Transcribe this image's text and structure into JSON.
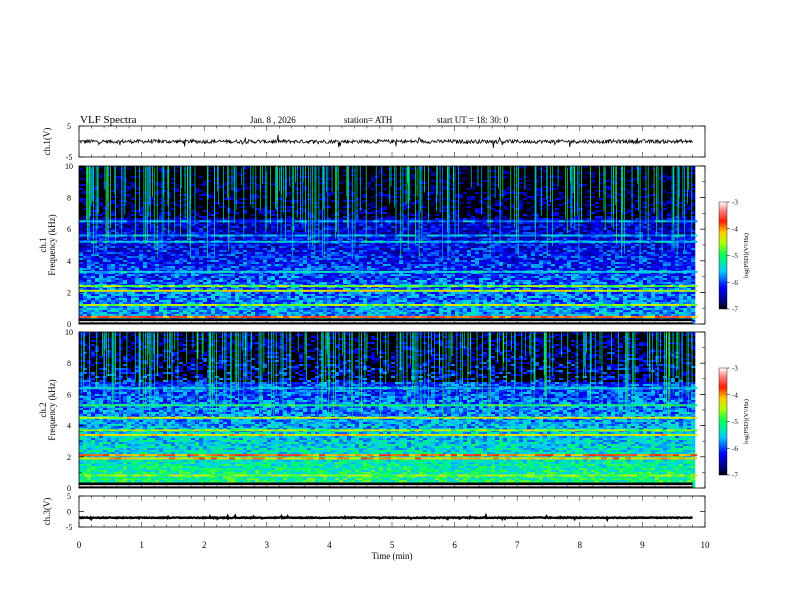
{
  "header": {
    "title": "VLF  Spectra",
    "date": "Jan. 8  , 2026",
    "station": "station= ATH",
    "start": "start  UT  =   18: 30: 0"
  },
  "chart_data": [
    {
      "id": "ch1_waveform",
      "type": "line",
      "ylabel": "ch.1(V)",
      "ylim": [
        -5,
        5
      ],
      "yticks_labeled": [
        5,
        -5
      ],
      "xlim": [
        0,
        10
      ],
      "data_extent_min": [
        0,
        9.8
      ],
      "baseline_v": 0,
      "noise_amplitude_v": 1.2,
      "color": "#000000"
    },
    {
      "id": "ch1_spectrogram",
      "type": "heatmap",
      "ylabel": "ch.1\nFrequency  (kHz)",
      "ylim": [
        0,
        10
      ],
      "yticks": [
        0,
        2,
        4,
        6,
        8,
        10
      ],
      "xlim": [
        0,
        10
      ],
      "data_extent_min": [
        0,
        9.8
      ],
      "bands_khz": [
        {
          "f": 0.45,
          "level": -3.8
        },
        {
          "f": 1.2,
          "level": -4.6
        },
        {
          "f": 2.1,
          "level": -4.4
        },
        {
          "f": 2.4,
          "level": -4.7
        },
        {
          "f": 3.3,
          "level": -5.5
        },
        {
          "f": 5.2,
          "level": -5.6
        },
        {
          "f": 5.6,
          "level": -5.7
        },
        {
          "f": 6.5,
          "level": -5.8
        }
      ],
      "colorbar": {
        "label": "log(PSD)(V²/Hz)",
        "ticks": [
          -3,
          -4,
          -5,
          -6,
          -7
        ],
        "range": [
          -7,
          -3
        ]
      }
    },
    {
      "id": "ch2_spectrogram",
      "type": "heatmap",
      "ylabel": "ch.2\nFrequency  (kHz)",
      "ylim": [
        0,
        10
      ],
      "yticks": [
        0,
        2,
        4,
        6,
        8,
        10
      ],
      "xlim": [
        0,
        10
      ],
      "data_extent_min": [
        0,
        9.8
      ],
      "bands_khz": [
        {
          "f": 0.8,
          "level": -4.6
        },
        {
          "f": 1.9,
          "level": -4.1
        },
        {
          "f": 2.1,
          "level": -3.9
        },
        {
          "f": 3.4,
          "level": -4.3
        },
        {
          "f": 3.7,
          "level": -4.6
        },
        {
          "f": 4.5,
          "level": -4.4
        },
        {
          "f": 5.3,
          "level": -5.0
        },
        {
          "f": 6.4,
          "level": -5.6
        }
      ],
      "colorbar": {
        "label": "log(PSD)(V²/Hz)",
        "ticks": [
          -3,
          -4,
          -5,
          -6,
          -7
        ],
        "range": [
          -7,
          -3
        ]
      }
    },
    {
      "id": "ch3_waveform",
      "type": "line",
      "ylabel": "ch.3(V)",
      "ylim": [
        -5,
        5
      ],
      "yticks_labeled": [
        5,
        0,
        -5
      ],
      "xlim": [
        0,
        10
      ],
      "data_extent_min": [
        0,
        9.8
      ],
      "baseline_v": -2,
      "noise_amplitude_v": 0.3,
      "color": "#000000"
    }
  ],
  "x_axis": {
    "label": "Time  (min)",
    "ticks": [
      0,
      1,
      2,
      3,
      4,
      5,
      6,
      7,
      8,
      9,
      10
    ]
  }
}
